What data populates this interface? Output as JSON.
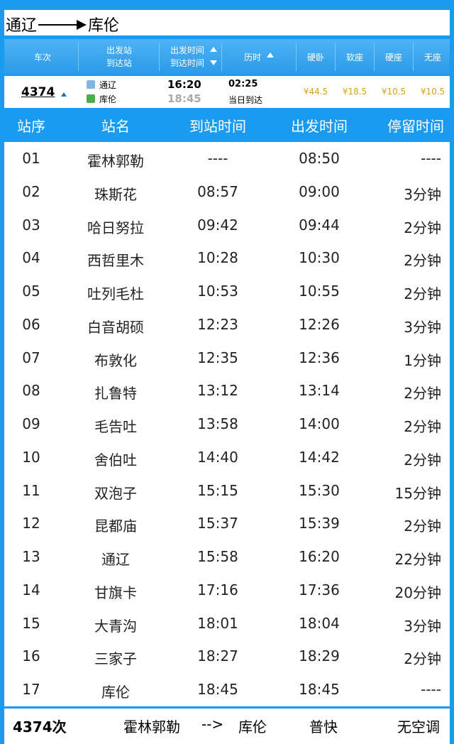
{
  "title": {
    "from": "通辽",
    "to": "库伦"
  },
  "list_header": {
    "train": "车次",
    "from_station": "出发站",
    "to_station": "到达站",
    "depart_time": "出发时间",
    "arrive_time": "到达时间",
    "duration": "历时",
    "seats": [
      "硬卧",
      "软座",
      "硬座",
      "无座"
    ]
  },
  "train": {
    "number": "4374",
    "from": "通辽",
    "to": "库伦",
    "depart": "16:20",
    "arrive": "18:45",
    "duration": "02:25",
    "arrival_day": "当日到达",
    "prices": [
      "¥44.5",
      "¥18.5",
      "¥10.5",
      "¥10.5"
    ]
  },
  "table": {
    "columns": [
      "站序",
      "站名",
      "到站时间",
      "出发时间",
      "停留时间"
    ],
    "rows": [
      [
        "01",
        "霍林郭勒",
        "----",
        "08:50",
        "----"
      ],
      [
        "02",
        "珠斯花",
        "08:57",
        "09:00",
        "3分钟"
      ],
      [
        "03",
        "哈日努拉",
        "09:42",
        "09:44",
        "2分钟"
      ],
      [
        "04",
        "西哲里木",
        "10:28",
        "10:30",
        "2分钟"
      ],
      [
        "05",
        "吐列毛杜",
        "10:53",
        "10:55",
        "2分钟"
      ],
      [
        "06",
        "白音胡硕",
        "12:23",
        "12:26",
        "3分钟"
      ],
      [
        "07",
        "布敦化",
        "12:35",
        "12:36",
        "1分钟"
      ],
      [
        "08",
        "扎鲁特",
        "13:12",
        "13:14",
        "2分钟"
      ],
      [
        "09",
        "毛告吐",
        "13:58",
        "14:00",
        "2分钟"
      ],
      [
        "10",
        "舍伯吐",
        "14:40",
        "14:42",
        "2分钟"
      ],
      [
        "11",
        "双泡子",
        "15:15",
        "15:30",
        "15分钟"
      ],
      [
        "12",
        "昆都庙",
        "15:37",
        "15:39",
        "2分钟"
      ],
      [
        "13",
        "通辽",
        "15:58",
        "16:20",
        "22分钟"
      ],
      [
        "14",
        "甘旗卡",
        "17:16",
        "17:36",
        "20分钟"
      ],
      [
        "15",
        "大青沟",
        "18:01",
        "18:04",
        "3分钟"
      ],
      [
        "16",
        "三家子",
        "18:27",
        "18:29",
        "2分钟"
      ],
      [
        "17",
        "库伦",
        "18:45",
        "18:45",
        "----"
      ]
    ]
  },
  "footer": {
    "train": "4374次",
    "route_from": "霍林郭勒",
    "route_sep": "-->",
    "route_to": "库伦",
    "train_class": "普快",
    "ac": "无空调"
  }
}
